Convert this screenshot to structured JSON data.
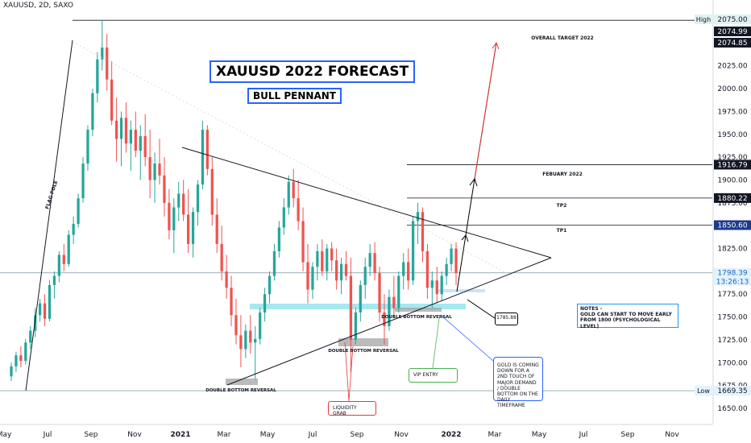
{
  "symbol": "XAUUSD, 2D, SAXO",
  "title": "XAUUSD 2022 FORECAST",
  "subtitle": "BULL PENNANT",
  "colors": {
    "up": "#26a69a",
    "down": "#ef5350",
    "accent": "#2962ff",
    "cyan_zone": "#80deea",
    "target_arrow": "#e53935",
    "grid": "#e0e3eb"
  },
  "level_labels": {
    "overall_target": "OVERALL TARGET 2022",
    "february": "FEBUARY 2022",
    "tp2": "TP2",
    "tp1": "TP1"
  },
  "annotations": {
    "flag_pole": "FLAG POLE",
    "double_bottom_1": "DOUBLE BOTTOM REVERSAL",
    "double_bottom_2": "DOUBLE BOTTOM REVERSAL",
    "double_bottom_3": "DOUBLE BOTTOM REVERSAL",
    "notes": "NOTES - \nGOLD CAN START TO MOVE EARLY FROM 1800 (PSYCHOLOGICAL LEVEL)",
    "gold_box": "GOLD IS COMING DOWN FOR A 2ND TOUCH OF MAJOR DEMAND / DOUBLE BOTTOM ON THE DAILY TIMEFRAME",
    "vip_entry": "VIP ENTRY",
    "liquidity_grab": "LIQUIDITY GRAB",
    "price_callout": "1785.88"
  },
  "chart_data": {
    "type": "candlestick",
    "x_ticks": [
      "May",
      "Jul",
      "Sep",
      "Nov",
      "2021",
      "Mar",
      "May",
      "Jul",
      "Sep",
      "Nov",
      "2022",
      "Mar",
      "May",
      "Jul",
      "Sep",
      "Nov"
    ],
    "y_ticks": [
      1650,
      1675,
      1700,
      1725,
      1750,
      1775,
      1800,
      1825,
      1850,
      1875,
      1900,
      1925,
      1950,
      1975,
      2000,
      2025,
      2050,
      2075
    ],
    "ylim": [
      1640,
      2080
    ],
    "price_labels": [
      {
        "label": "High",
        "value": "2075.00"
      },
      {
        "value": "2074.99"
      },
      {
        "value": "2074.85"
      },
      {
        "value": "1916.79"
      },
      {
        "value": "1880.22"
      },
      {
        "value": "1850.60"
      },
      {
        "value": "1798.39",
        "extra": "13:26:13"
      },
      {
        "label": "Low",
        "value": "1669.35"
      }
    ],
    "horizontal_levels": [
      2074.85,
      1916.79,
      1880.22,
      1850.6,
      1798.39,
      1669.35
    ],
    "candles": [
      [
        1685,
        1700,
        1680,
        1696
      ],
      [
        1696,
        1712,
        1690,
        1708
      ],
      [
        1708,
        1718,
        1695,
        1702
      ],
      [
        1702,
        1726,
        1698,
        1722
      ],
      [
        1722,
        1740,
        1715,
        1735
      ],
      [
        1735,
        1760,
        1728,
        1752
      ],
      [
        1752,
        1770,
        1745,
        1765
      ],
      [
        1765,
        1775,
        1740,
        1748
      ],
      [
        1748,
        1790,
        1745,
        1785
      ],
      [
        1785,
        1800,
        1770,
        1795
      ],
      [
        1795,
        1822,
        1788,
        1818
      ],
      [
        1818,
        1830,
        1800,
        1808
      ],
      [
        1808,
        1845,
        1805,
        1840
      ],
      [
        1840,
        1860,
        1830,
        1852
      ],
      [
        1852,
        1885,
        1848,
        1880
      ],
      [
        1880,
        1925,
        1875,
        1918
      ],
      [
        1918,
        1960,
        1910,
        1955
      ],
      [
        1955,
        2000,
        1948,
        1995
      ],
      [
        1995,
        2040,
        1985,
        2032
      ],
      [
        2032,
        2075,
        2020,
        2045
      ],
      [
        2045,
        2060,
        1998,
        2010
      ],
      [
        2010,
        2030,
        1960,
        1965
      ],
      [
        1965,
        1990,
        1920,
        1945
      ],
      [
        1945,
        1975,
        1915,
        1968
      ],
      [
        1968,
        1985,
        1930,
        1940
      ],
      [
        1940,
        1965,
        1910,
        1955
      ],
      [
        1955,
        1975,
        1925,
        1932
      ],
      [
        1932,
        1960,
        1900,
        1948
      ],
      [
        1948,
        1972,
        1915,
        1925
      ],
      [
        1925,
        1955,
        1880,
        1900
      ],
      [
        1900,
        1930,
        1875,
        1918
      ],
      [
        1918,
        1945,
        1895,
        1905
      ],
      [
        1905,
        1925,
        1860,
        1875
      ],
      [
        1875,
        1890,
        1835,
        1845
      ],
      [
        1845,
        1880,
        1820,
        1870
      ],
      [
        1870,
        1898,
        1855,
        1885
      ],
      [
        1885,
        1900,
        1855,
        1862
      ],
      [
        1862,
        1890,
        1820,
        1830
      ],
      [
        1830,
        1870,
        1815,
        1865
      ],
      [
        1865,
        1900,
        1850,
        1895
      ],
      [
        1895,
        1965,
        1890,
        1955
      ],
      [
        1955,
        1960,
        1905,
        1912
      ],
      [
        1912,
        1925,
        1850,
        1862
      ],
      [
        1862,
        1880,
        1820,
        1830
      ],
      [
        1830,
        1850,
        1790,
        1800
      ],
      [
        1800,
        1818,
        1770,
        1782
      ],
      [
        1782,
        1795,
        1740,
        1752
      ],
      [
        1752,
        1770,
        1720,
        1730
      ],
      [
        1730,
        1752,
        1695,
        1715
      ],
      [
        1715,
        1742,
        1705,
        1735
      ],
      [
        1735,
        1752,
        1710,
        1722
      ],
      [
        1722,
        1740,
        1682,
        1726
      ],
      [
        1726,
        1760,
        1720,
        1755
      ],
      [
        1755,
        1782,
        1745,
        1775
      ],
      [
        1775,
        1800,
        1765,
        1795
      ],
      [
        1795,
        1830,
        1790,
        1822
      ],
      [
        1822,
        1855,
        1815,
        1848
      ],
      [
        1848,
        1880,
        1840,
        1870
      ],
      [
        1870,
        1905,
        1862,
        1898
      ],
      [
        1898,
        1912,
        1870,
        1880
      ],
      [
        1880,
        1900,
        1845,
        1855
      ],
      [
        1855,
        1870,
        1800,
        1810
      ],
      [
        1810,
        1830,
        1765,
        1780
      ],
      [
        1780,
        1810,
        1770,
        1805
      ],
      [
        1805,
        1830,
        1790,
        1822
      ],
      [
        1822,
        1835,
        1795,
        1800
      ],
      [
        1800,
        1830,
        1790,
        1825
      ],
      [
        1825,
        1832,
        1800,
        1812
      ],
      [
        1812,
        1825,
        1780,
        1790
      ],
      [
        1790,
        1815,
        1775,
        1808
      ],
      [
        1808,
        1822,
        1790,
        1795
      ],
      [
        1795,
        1815,
        1690,
        1725
      ],
      [
        1725,
        1760,
        1720,
        1755
      ],
      [
        1755,
        1790,
        1745,
        1785
      ],
      [
        1785,
        1815,
        1770,
        1805
      ],
      [
        1805,
        1830,
        1795,
        1820
      ],
      [
        1820,
        1832,
        1790,
        1798
      ],
      [
        1798,
        1805,
        1745,
        1755
      ],
      [
        1755,
        1775,
        1720,
        1740
      ],
      [
        1740,
        1780,
        1735,
        1772
      ],
      [
        1772,
        1795,
        1750,
        1760
      ],
      [
        1760,
        1800,
        1755,
        1795
      ],
      [
        1795,
        1820,
        1780,
        1810
      ],
      [
        1810,
        1825,
        1780,
        1790
      ],
      [
        1790,
        1860,
        1785,
        1855
      ],
      [
        1855,
        1875,
        1830,
        1865
      ],
      [
        1865,
        1870,
        1810,
        1822
      ],
      [
        1822,
        1830,
        1770,
        1782
      ],
      [
        1782,
        1800,
        1760,
        1790
      ],
      [
        1790,
        1805,
        1765,
        1775
      ],
      [
        1775,
        1800,
        1768,
        1795
      ],
      [
        1795,
        1815,
        1785,
        1808
      ],
      [
        1808,
        1830,
        1800,
        1825
      ],
      [
        1825,
        1832,
        1785,
        1798
      ]
    ]
  }
}
